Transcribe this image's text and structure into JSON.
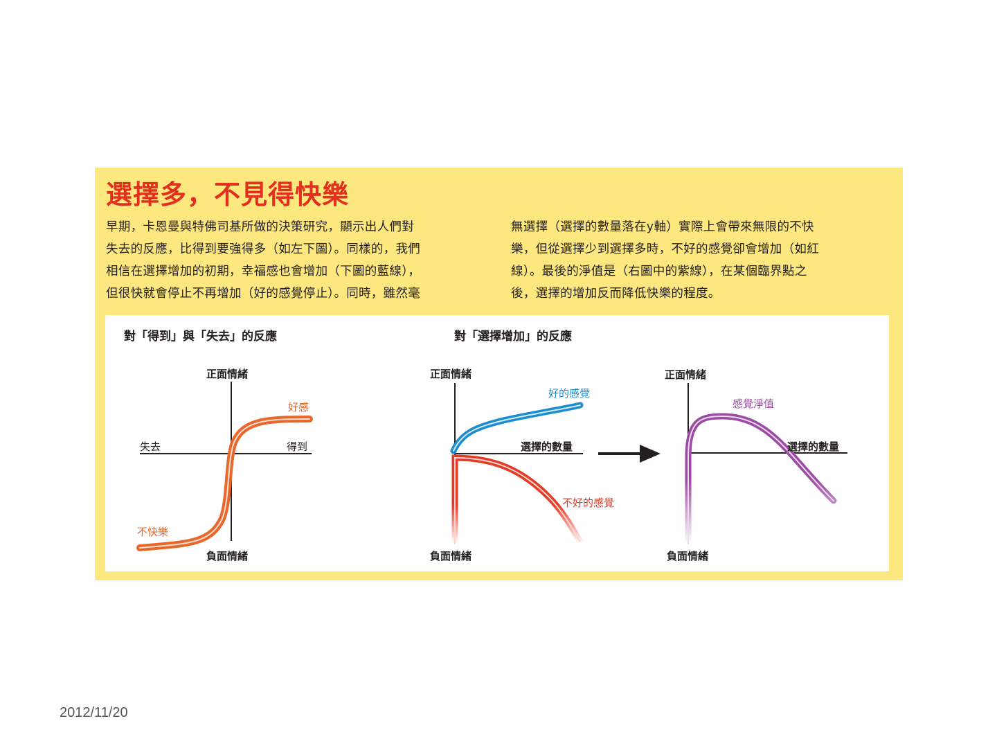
{
  "headline": "選擇多，不見得快樂",
  "paragraph_left": [
    "早期，卡恩曼與特佛司基所做的決策研究，顯示出人們對",
    "失去的反應，比得到要強得多（如左下圖）。同樣的，我們",
    "相信在選擇增加的初期，幸福感也會增加（下圖的藍線），",
    "但很快就會停止不再增加（好的感覺停止）。同時，雖然毫"
  ],
  "paragraph_right": [
    "無選擇（選擇的數量落在y軸）實際上會帶來無限的不快",
    "樂，但從選擇少到選擇多時，不好的感覺卻會增加（如紅",
    "線）。最後的淨值是（右圖中的紫線），在某個臨界點之",
    "後，選擇的增加反而降低快樂的程度。"
  ],
  "figure1": {
    "title": "對「得到」與「失去」的反應",
    "y_top": "正面情緒",
    "y_bottom": "負面情緒",
    "x_left": "失去",
    "x_right": "得到",
    "curve_high_label": "好感",
    "curve_low_label": "不快樂"
  },
  "figure2": {
    "title": "對「選擇增加」的反應",
    "y_top": "正面情緒",
    "y_bottom": "負面情緒",
    "x_right": "選擇的數量",
    "good_label": "好的感覺",
    "bad_label": "不好的感覺"
  },
  "figure3": {
    "y_top": "正面情緒",
    "y_bottom": "負面情緒",
    "x_right": "選擇的數量",
    "net_label": "感覺淨值"
  },
  "colors": {
    "panel_bg": "#fde77f",
    "headline": "#e32f1f",
    "orange_curve": "#e8672a",
    "blue_curve": "#1d8ccd",
    "red_curve": "#e53a26",
    "purple_curve": "#9b4aa3"
  },
  "footer_date": "2012/11/20"
}
